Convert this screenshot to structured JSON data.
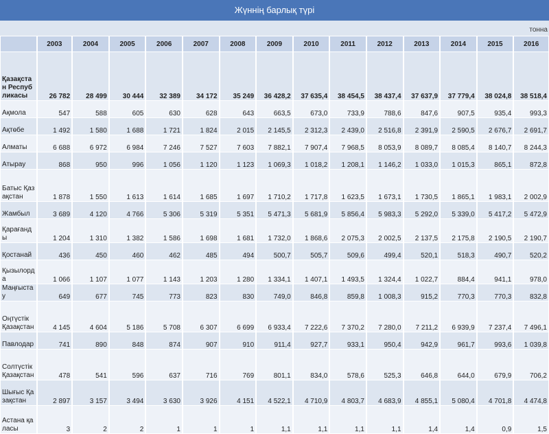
{
  "title": "Жүннің барлық түрі",
  "unit": "тонна",
  "years": [
    "2003",
    "2004",
    "2005",
    "2006",
    "2007",
    "2008",
    "2009",
    "2010",
    "2011",
    "2012",
    "2013",
    "2014",
    "2015",
    "2016"
  ],
  "rows": [
    {
      "name": "Қазақстан Республикасы",
      "values": [
        "26 782",
        "28 499",
        "30 444",
        "32 389",
        "34 172",
        "35 249",
        "36 428,2",
        "37 635,4",
        "38 454,5",
        "38 437,4",
        "37 637,9",
        "37 779,4",
        "38 024,8",
        "38 518,4"
      ],
      "h": 70,
      "total": true
    },
    {
      "name": "Ақмола",
      "values": [
        "547",
        "588",
        "605",
        "630",
        "628",
        "643",
        "663,5",
        "673,0",
        "733,9",
        "788,6",
        "847,6",
        "907,5",
        "935,4",
        "993,3"
      ],
      "h": 24
    },
    {
      "name": "Ақтөбе",
      "values": [
        "1 492",
        "1 580",
        "1 688",
        "1 721",
        "1 824",
        "2 015",
        "2 145,5",
        "2 312,3",
        "2 439,0",
        "2 516,8",
        "2 391,9",
        "2 590,5",
        "2 676,7",
        "2 691,7"
      ],
      "h": 24
    },
    {
      "name": "Алматы",
      "values": [
        "6 688",
        "6 972",
        "6 984",
        "7 246",
        "7 527",
        "7 603",
        "7 882,1",
        "7 907,4",
        "7 968,5",
        "8 053,9",
        "8 089,7",
        "8 085,4",
        "8 140,7",
        "8 244,3"
      ],
      "h": 24
    },
    {
      "name": "Атырау",
      "values": [
        "868",
        "950",
        "996",
        "1 056",
        "1 120",
        "1 123",
        "1 069,3",
        "1 018,2",
        "1 208,1",
        "1 146,2",
        "1 033,0",
        "1 015,3",
        "865,1",
        "872,8"
      ],
      "h": 24
    },
    {
      "name": "Батыс Қазақстан",
      "values": [
        "1 878",
        "1 550",
        "1 613",
        "1 614",
        "1 685",
        "1 697",
        "1 710,2",
        "1 717,8",
        "1 623,5",
        "1 673,1",
        "1 730,5",
        "1 865,1",
        "1 983,1",
        "2 002,9"
      ],
      "h": 46
    },
    {
      "name": "Жамбыл",
      "values": [
        "3 689",
        "4 120",
        "4 766",
        "5 306",
        "5 319",
        "5 351",
        "5 471,3",
        "5 681,9",
        "5 856,4",
        "5 983,3",
        "5 292,0",
        "5 339,0",
        "5 417,2",
        "5 472,9"
      ],
      "h": 24
    },
    {
      "name": "Қарағанды",
      "values": [
        "1 204",
        "1 310",
        "1 382",
        "1 586",
        "1 698",
        "1 681",
        "1 732,0",
        "1 868,6",
        "2 075,3",
        "2 002,5",
        "2 137,5",
        "2 175,8",
        "2 190,5",
        "2 190,7"
      ],
      "h": 34
    },
    {
      "name": "Қостанай",
      "values": [
        "436",
        "450",
        "460",
        "462",
        "485",
        "494",
        "500,7",
        "505,7",
        "509,6",
        "499,4",
        "520,1",
        "518,3",
        "490,7",
        "520,2"
      ],
      "h": 24
    },
    {
      "name": "Қызылорда",
      "values": [
        "1 066",
        "1 107",
        "1 077",
        "1 143",
        "1 203",
        "1 280",
        "1 334,1",
        "1 407,1",
        "1 493,5",
        "1 324,4",
        "1 022,7",
        "884,4",
        "941,1",
        "978,0"
      ],
      "h": 34
    },
    {
      "name": "Маңғыстау",
      "values": [
        "649",
        "677",
        "745",
        "773",
        "823",
        "830",
        "749,0",
        "846,8",
        "859,8",
        "1 008,3",
        "915,2",
        "770,3",
        "770,3",
        "832,8"
      ],
      "h": 24
    },
    {
      "name": "Оңтүстік Қазақстан",
      "values": [
        "4 145",
        "4 604",
        "5 186",
        "5 708",
        "6 307",
        "6 699",
        "6 933,4",
        "7 222,6",
        "7 370,2",
        "7 280,0",
        "7 211,2",
        "6 939,9",
        "7 237,4",
        "7 496,1"
      ],
      "h": 44
    },
    {
      "name": "Павлодар",
      "values": [
        "741",
        "890",
        "848",
        "874",
        "907",
        "910",
        "911,4",
        "927,7",
        "933,1",
        "950,4",
        "942,9",
        "961,7",
        "993,6",
        "1 039,8"
      ],
      "h": 24
    },
    {
      "name": "Солтүстік Қазақстан",
      "values": [
        "478",
        "541",
        "596",
        "637",
        "716",
        "769",
        "801,1",
        "834,0",
        "578,6",
        "525,3",
        "646,8",
        "644,0",
        "679,9",
        "706,2"
      ],
      "h": 44
    },
    {
      "name": "Шығыс Қазақстан",
      "values": [
        "2 897",
        "3 157",
        "3 494",
        "3 630",
        "3 926",
        "4 151",
        "4 522,1",
        "4 710,9",
        "4 803,7",
        "4 683,9",
        "4 855,1",
        "5 080,4",
        "4 701,8",
        "4 474,8"
      ],
      "h": 36
    },
    {
      "name": "Астана қаласы",
      "values": [
        "3",
        "2",
        "2",
        "1",
        "1",
        "1",
        "1,1",
        "1,1",
        "1,1",
        "1,1",
        "1,4",
        "1,4",
        "0,9",
        "1,5"
      ],
      "h": 40
    }
  ]
}
